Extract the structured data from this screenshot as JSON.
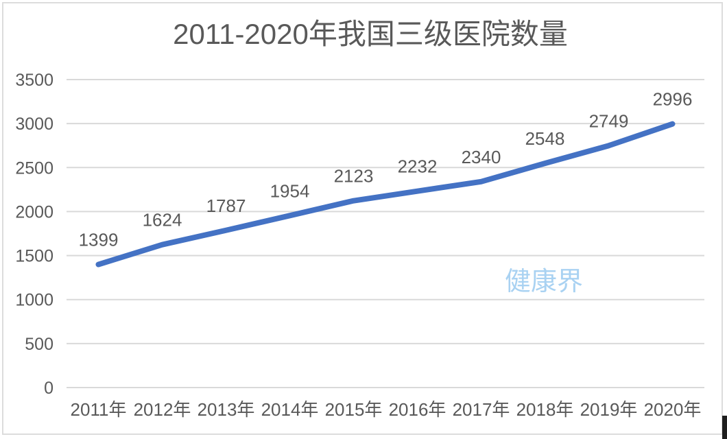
{
  "chart_data": {
    "type": "line",
    "title": "2011-2020年我国三级医院数量",
    "categories": [
      "2011年",
      "2012年",
      "2013年",
      "2014年",
      "2015年",
      "2016年",
      "2017年",
      "2018年",
      "2019年",
      "2020年"
    ],
    "values": [
      1399,
      1624,
      1787,
      1954,
      2123,
      2232,
      2340,
      2548,
      2749,
      2996
    ],
    "data_labels": [
      1399,
      1624,
      1787,
      1954,
      2123,
      2232,
      2340,
      2548,
      2749,
      2996
    ],
    "xlabel": "",
    "ylabel": "",
    "ylim": [
      0,
      3500
    ],
    "y_ticks": [
      0,
      500,
      1000,
      1500,
      2000,
      2500,
      3000,
      3500
    ],
    "grid": true,
    "legend": "none",
    "colors": {
      "line": "#4472c4",
      "axis_text": "#595959",
      "data_label_text": "#595959",
      "title_text": "#595959",
      "gridline": "#d9d9d9"
    }
  },
  "watermark": {
    "text": "健康界",
    "color": "#a9d2f2"
  },
  "frame": {
    "border_color": "#dcdcdc"
  },
  "artifacts": {
    "text_cursor_color": "#1e1e1e"
  }
}
